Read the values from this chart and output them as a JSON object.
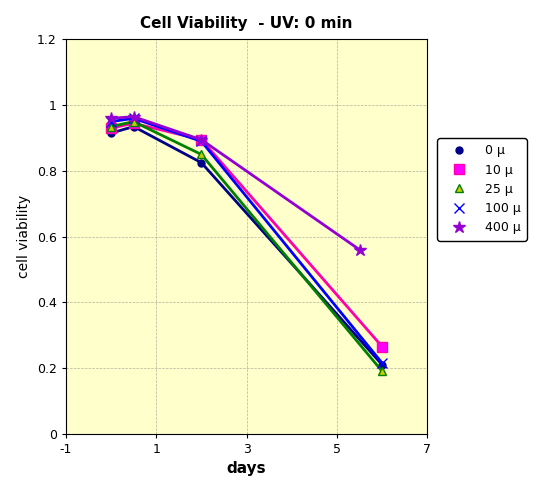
{
  "title": "Cell Viability  - UV: 0 min",
  "xlabel": "days",
  "ylabel": "cell viability",
  "background_color": "#FFFFFF",
  "plot_bg_color": "#FFFFCC",
  "xlim": [
    -1,
    7
  ],
  "ylim": [
    0,
    1.2
  ],
  "xticks": [
    -1,
    1,
    3,
    5,
    7
  ],
  "yticks": [
    0,
    0.2,
    0.4,
    0.6,
    0.8,
    1.0,
    1.2
  ],
  "series": [
    {
      "label": "0 μ",
      "color": "#00008B",
      "marker": "o",
      "markersize": 5,
      "x": [
        0,
        0.5,
        2,
        6
      ],
      "y": [
        0.915,
        0.935,
        0.825,
        0.21
      ]
    },
    {
      "label": "10 μ",
      "color": "#FF00AA",
      "marker": "s",
      "markersize": 7,
      "x": [
        0,
        0.5,
        2,
        6
      ],
      "y": [
        0.93,
        0.945,
        0.895,
        0.265
      ]
    },
    {
      "label": "25 μ",
      "color": "#008000",
      "marker": "^",
      "markersize": 6,
      "x": [
        0,
        0.5,
        2,
        6
      ],
      "y": [
        0.935,
        0.95,
        0.85,
        0.19
      ]
    },
    {
      "label": "100 μ",
      "color": "#0000FF",
      "marker": "x",
      "markersize": 7,
      "x": [
        0,
        0.5,
        2,
        6
      ],
      "y": [
        0.95,
        0.96,
        0.89,
        0.215
      ]
    },
    {
      "label": "400 μ",
      "color": "#9400D3",
      "marker": "*",
      "markersize": 9,
      "x": [
        0,
        0.5,
        2,
        5.5
      ],
      "y": [
        0.96,
        0.965,
        0.895,
        0.56
      ]
    }
  ]
}
